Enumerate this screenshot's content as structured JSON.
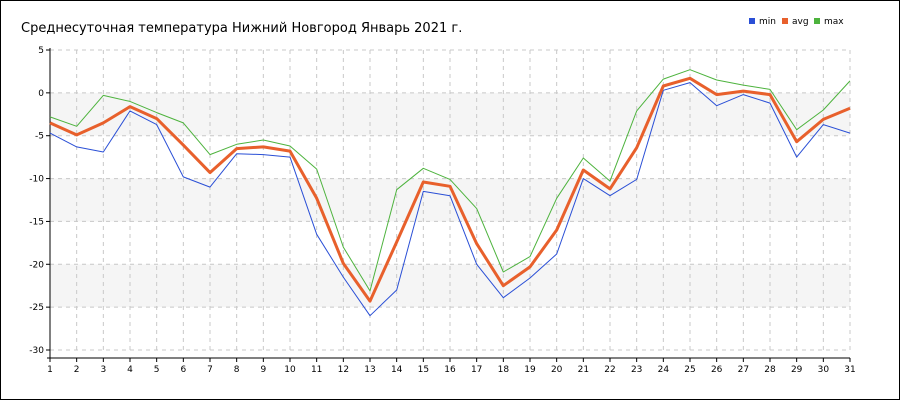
{
  "chart_data": {
    "type": "line",
    "title": "Среднесуточная температура Нижний Новгород  Январь 2021 г.",
    "xlabel": "",
    "ylabel": "",
    "x": [
      1,
      2,
      3,
      4,
      5,
      6,
      7,
      8,
      9,
      10,
      11,
      12,
      13,
      14,
      15,
      16,
      17,
      18,
      19,
      20,
      21,
      22,
      23,
      24,
      25,
      26,
      27,
      28,
      29,
      30,
      31
    ],
    "x_tick_labels": [
      "1",
      "2",
      "3",
      "4",
      "5",
      "6",
      "7",
      "8",
      "9",
      "10",
      "11",
      "12",
      "13",
      "14",
      "15",
      "16",
      "17",
      "18",
      "19",
      "20",
      "21",
      "22",
      "23",
      "24",
      "25",
      "26",
      "27",
      "28",
      "29",
      "30",
      "31"
    ],
    "ylim": [
      -30,
      5
    ],
    "y_ticks": [
      5,
      0,
      -5,
      -10,
      -15,
      -20,
      -25,
      -30
    ],
    "y_tick_labels": [
      "5",
      "0",
      "-5",
      "-10",
      "-15",
      "-20",
      "-25",
      "-30"
    ],
    "grid": true,
    "legend_position": "top-right",
    "series": [
      {
        "name": "min",
        "color": "#2a4fd6",
        "values": [
          -4.7,
          -6.3,
          -6.9,
          -2.1,
          -3.7,
          -9.8,
          -11.0,
          -7.1,
          -7.2,
          -7.5,
          -16.5,
          -21.5,
          -26.0,
          -23.0,
          -11.5,
          -12.0,
          -20.0,
          -23.9,
          -21.6,
          -18.8,
          -10.0,
          -12.0,
          -10.1,
          0.3,
          1.2,
          -1.5,
          -0.2,
          -1.2,
          -7.5,
          -3.7,
          -4.7
        ]
      },
      {
        "name": "avg",
        "color": "#e8602c",
        "values": [
          -3.5,
          -4.9,
          -3.5,
          -1.6,
          -3.0,
          -6.1,
          -9.3,
          -6.5,
          -6.3,
          -6.8,
          -12.3,
          -19.9,
          -24.3,
          -17.4,
          -10.4,
          -10.9,
          -17.6,
          -22.5,
          -20.3,
          -16.0,
          -9.0,
          -11.2,
          -6.4,
          0.8,
          1.7,
          -0.2,
          0.2,
          -0.2,
          -5.7,
          -3.1,
          -1.8
        ]
      },
      {
        "name": "max",
        "color": "#4db33d",
        "values": [
          -2.8,
          -3.9,
          -0.3,
          -1.0,
          -2.3,
          -3.5,
          -7.2,
          -6.0,
          -5.5,
          -6.2,
          -8.9,
          -18.0,
          -23.1,
          -11.3,
          -8.8,
          -10.1,
          -13.5,
          -20.9,
          -19.1,
          -12.3,
          -7.6,
          -10.3,
          -2.1,
          1.6,
          2.7,
          1.5,
          0.9,
          0.4,
          -4.3,
          -2.0,
          1.4
        ]
      }
    ]
  }
}
